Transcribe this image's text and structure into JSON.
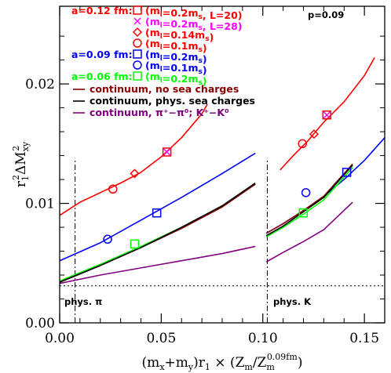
{
  "chart_data": {
    "type": "line",
    "xlabel": "(m_x+m_y)r_1 × (Z_m/Z_m^0.09fm)",
    "ylabel": "r_1^2 ΔM_xy^2",
    "xlim": [
      0.0,
      0.16
    ],
    "ylim": [
      0.0,
      0.0265
    ],
    "x_ticks": [
      "0.00",
      "0.05",
      "0.10",
      "0.15"
    ],
    "x_tick_values": [
      0.0,
      0.05,
      0.1,
      0.15
    ],
    "y_ticks": [
      "0.00",
      "0.01",
      "0.02"
    ],
    "y_tick_values": [
      0.0,
      0.01,
      0.02
    ],
    "grid": false,
    "legend_position": "top-left",
    "annotations": {
      "p_label": "p=0.09",
      "phys_pi": "phys. π",
      "phys_k": "phys. K"
    },
    "reference_lines": {
      "phys_pi_x": 0.0076,
      "phys_k_x": 0.1022,
      "horizontal_y": 0.0031
    },
    "legend": [
      {
        "group": "a=0.12 fm:",
        "label": "(m_l=0.2m_s, L=20)",
        "color": "#ff0000",
        "marker": "square"
      },
      {
        "group": "",
        "label": "(m_l=0.2m_s, L=28)",
        "color": "#ff00ff",
        "marker": "x"
      },
      {
        "group": "",
        "label": "(m_l=0.14m_s)",
        "color": "#ff0000",
        "marker": "diamond"
      },
      {
        "group": "",
        "label": "(m_l=0.1m_s)",
        "color": "#ff0000",
        "marker": "circle"
      },
      {
        "group": "a=0.09 fm:",
        "label": "(m_l=0.2m_s)",
        "color": "#0000ff",
        "marker": "square"
      },
      {
        "group": "",
        "label": "(m_l=0.1m_s)",
        "color": "#0000ff",
        "marker": "circle"
      },
      {
        "group": "a=0.06 fm:",
        "label": "(m_l=0.2m_s)",
        "color": "#00ff00",
        "marker": "square"
      },
      {
        "group": "",
        "label": "continuum, no sea charges",
        "color": "#8b0000",
        "marker": "line"
      },
      {
        "group": "",
        "label": "continuum, phys. sea charges",
        "color": "#000000",
        "marker": "line"
      },
      {
        "group": "",
        "label": "continuum, π⁺−π⁰; K⁺−K⁰",
        "color": "#800080",
        "marker": "line"
      }
    ],
    "series": [
      {
        "name": "a=0.12 fm fit (pion)",
        "color": "#ff0000",
        "x": [
          0.0,
          0.01,
          0.02,
          0.03,
          0.04,
          0.05,
          0.06,
          0.07,
          0.0727
        ],
        "y": [
          0.009,
          0.0101,
          0.0109,
          0.0117,
          0.0126,
          0.0139,
          0.0155,
          0.0175,
          0.0183
        ]
      },
      {
        "name": "a=0.12 fm fit (kaon)",
        "color": "#ff0000",
        "x": [
          0.1085,
          0.115,
          0.122,
          0.13,
          0.14,
          0.15,
          0.155
        ],
        "y": [
          0.0128,
          0.014,
          0.0152,
          0.0168,
          0.0185,
          0.0207,
          0.0222
        ]
      },
      {
        "name": "a=0.09 fm fit (pion)",
        "color": "#0000ff",
        "x": [
          0.0,
          0.02,
          0.04,
          0.06,
          0.08,
          0.0963
        ],
        "y": [
          0.0052,
          0.0067,
          0.0086,
          0.0105,
          0.0125,
          0.0142
        ]
      },
      {
        "name": "a=0.09 fm fit (kaon)",
        "color": "#0000ff",
        "x": [
          0.1017,
          0.11,
          0.12,
          0.13,
          0.14,
          0.15,
          0.16
        ],
        "y": [
          0.0075,
          0.0083,
          0.0094,
          0.0106,
          0.012,
          0.0136,
          0.0155
        ]
      },
      {
        "name": "a=0.06 fm fit (pion)",
        "color": "#00ff00",
        "x": [
          0.0,
          0.02,
          0.04,
          0.06,
          0.08,
          0.0963
        ],
        "y": [
          0.0035,
          0.0049,
          0.0064,
          0.008,
          0.0097,
          0.0117
        ]
      },
      {
        "name": "a=0.06 fm fit (kaon)",
        "color": "#00ff00",
        "x": [
          0.1017,
          0.11,
          0.12,
          0.13,
          0.1442
        ],
        "y": [
          0.0072,
          0.008,
          0.0091,
          0.0103,
          0.013
        ]
      },
      {
        "name": "continuum, no sea charges (pion)",
        "color": "#8b0000",
        "x": [
          0.0,
          0.02,
          0.04,
          0.06,
          0.08,
          0.0963
        ],
        "y": [
          0.0034,
          0.0048,
          0.0063,
          0.0079,
          0.0097,
          0.0116
        ]
      },
      {
        "name": "continuum, no sea charges (kaon)",
        "color": "#8b0000",
        "x": [
          0.1017,
          0.11,
          0.12,
          0.13,
          0.1442
        ],
        "y": [
          0.0075,
          0.0083,
          0.0094,
          0.0106,
          0.0133
        ]
      },
      {
        "name": "continuum, phys. sea charges (pion)",
        "color": "#000000",
        "x": [
          0.0,
          0.02,
          0.04,
          0.06,
          0.08,
          0.0963
        ],
        "y": [
          0.0034,
          0.0048,
          0.0063,
          0.008,
          0.0098,
          0.0117
        ]
      },
      {
        "name": "continuum, phys. sea charges (kaon)",
        "color": "#000000",
        "x": [
          0.1017,
          0.11,
          0.12,
          0.13,
          0.1442
        ],
        "y": [
          0.0073,
          0.0081,
          0.0093,
          0.0105,
          0.0132
        ]
      },
      {
        "name": "continuum, π⁺−π⁰ (pion)",
        "color": "#800080",
        "x": [
          0.0,
          0.02,
          0.04,
          0.06,
          0.08,
          0.0963
        ],
        "y": [
          0.0033,
          0.004,
          0.0046,
          0.0052,
          0.0058,
          0.0064
        ]
      },
      {
        "name": "continuum, K⁺−K⁰ (kaon)",
        "color": "#800080",
        "x": [
          0.1017,
          0.11,
          0.12,
          0.13,
          0.1442
        ],
        "y": [
          0.0051,
          0.0059,
          0.0068,
          0.0078,
          0.0101
        ]
      }
    ],
    "points": [
      {
        "series": "a=0.12 fm (m_l=0.2m_s, L=20)",
        "marker": "square",
        "color": "#ff0000",
        "x": [
          0.0528,
          0.1315
        ],
        "y": [
          0.0143,
          0.0174
        ]
      },
      {
        "series": "a=0.12 fm (m_l=0.2m_s, L=28)",
        "marker": "x",
        "color": "#ff00ff",
        "x": [
          0.0528,
          0.1315
        ],
        "y": [
          0.0143,
          0.0174
        ]
      },
      {
        "series": "a=0.12 fm (m_l=0.14m_s)",
        "marker": "diamond",
        "color": "#ff0000",
        "x": [
          0.0369,
          0.1252
        ],
        "y": [
          0.0125,
          0.0158
        ]
      },
      {
        "series": "a=0.12 fm (m_l=0.1m_s)",
        "marker": "circle",
        "color": "#ff0000",
        "x": [
          0.0262,
          0.1195
        ],
        "y": [
          0.0112,
          0.015
        ]
      },
      {
        "series": "a=0.09 fm (m_l=0.2m_s)",
        "marker": "square",
        "color": "#0000ff",
        "x": [
          0.0478,
          0.1413
        ],
        "y": [
          0.0092,
          0.0126
        ]
      },
      {
        "series": "a=0.09 fm (m_l=0.1m_s)",
        "marker": "circle",
        "color": "#0000ff",
        "x": [
          0.0236,
          0.1212
        ],
        "y": [
          0.007,
          0.0109
        ]
      },
      {
        "series": "a=0.06 fm (m_l=0.2m_s)",
        "marker": "square",
        "color": "#00ff00",
        "x": [
          0.0369,
          0.1199
        ],
        "y": [
          0.0066,
          0.0092
        ]
      }
    ]
  }
}
